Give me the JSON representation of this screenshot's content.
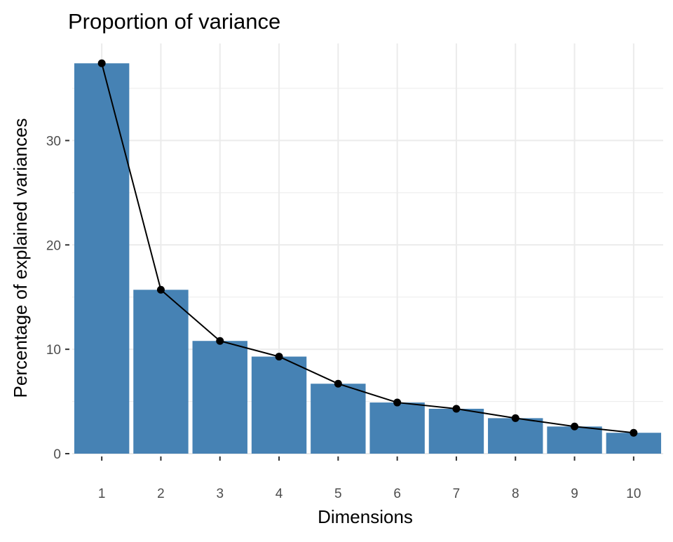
{
  "chart_data": {
    "type": "bar",
    "title": "Proportion of variance",
    "xlabel": "Dimensions",
    "ylabel": "Percentage of explained variances",
    "categories": [
      "1",
      "2",
      "3",
      "4",
      "5",
      "6",
      "7",
      "8",
      "9",
      "10"
    ],
    "values": [
      37.4,
      15.7,
      10.8,
      9.3,
      6.7,
      4.9,
      4.3,
      3.4,
      2.6,
      2.0
    ],
    "y_ticks": [
      0,
      10,
      20,
      30
    ],
    "ylim": [
      0,
      39.3
    ],
    "grid": true,
    "legend": "none",
    "overlay": "line with points connecting bar tops",
    "colors": {
      "bar": "#4682b4",
      "line": "#000000",
      "point": "#000000",
      "grid": "#ebebeb",
      "background": "#ffffff"
    }
  }
}
